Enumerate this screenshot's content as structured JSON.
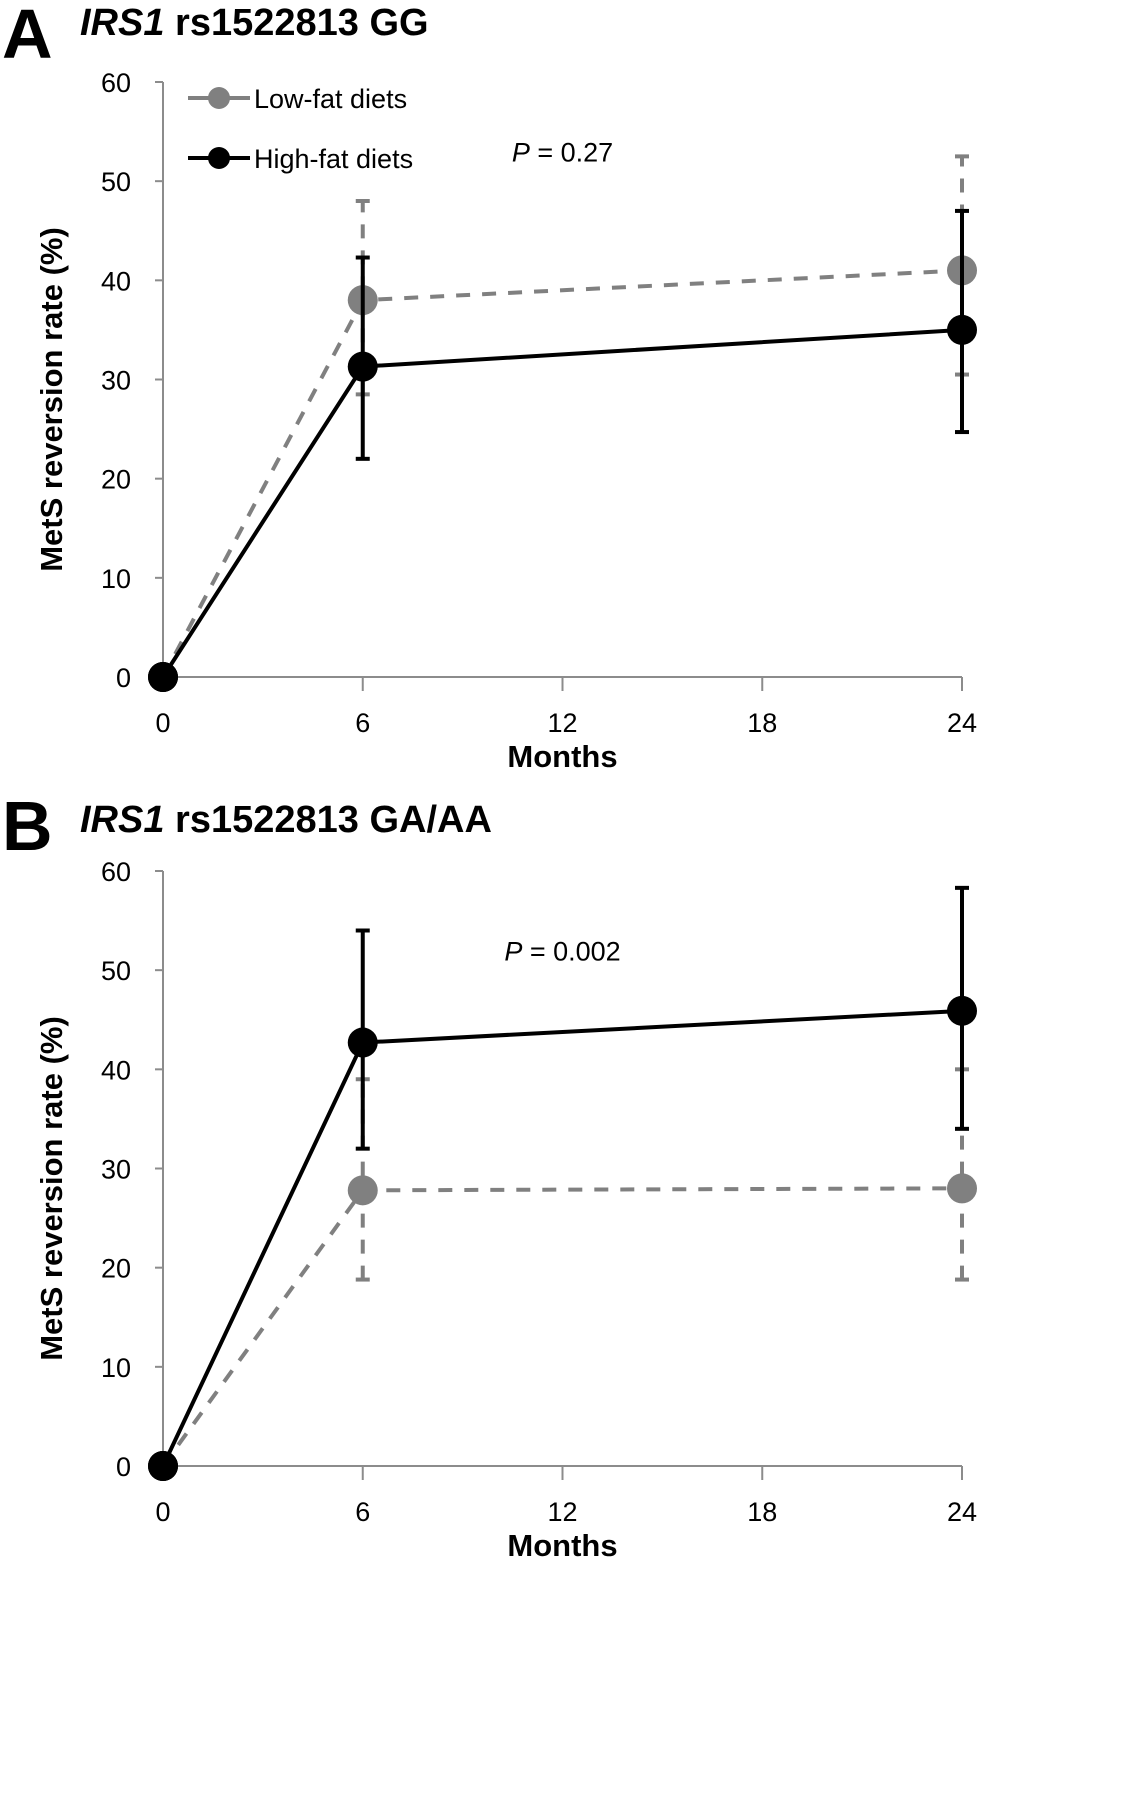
{
  "chart_data": [
    {
      "type": "line",
      "panel_label": "A",
      "title_italic": "IRS1",
      "title_rest": " rs1522813 GG",
      "xlabel": "Months",
      "ylabel": "MetS reversion rate  (%)",
      "x": [
        0,
        6,
        24
      ],
      "xticks": [
        0,
        6,
        12,
        18,
        24
      ],
      "xlim": [
        0,
        24
      ],
      "yticks": [
        0,
        10,
        20,
        30,
        40,
        50,
        60
      ],
      "ylim": [
        0,
        60
      ],
      "grid": false,
      "legend": {
        "placement": "top-left",
        "shown": true
      },
      "annotation": {
        "p_label": "P",
        "p_text": " = 0.27",
        "x": 12,
        "y": 52
      },
      "series": [
        {
          "name": "Low-fat diets",
          "color": "#808080",
          "line_style": "dashed",
          "values": [
            0,
            38,
            41
          ],
          "err_low": [
            0,
            28.5,
            30.5
          ],
          "err_high": [
            0,
            48,
            52.5
          ]
        },
        {
          "name": "High-fat diets",
          "color": "#000000",
          "line_style": "solid",
          "values": [
            0,
            31.3,
            35
          ],
          "err_low": [
            0,
            22,
            24.7
          ],
          "err_high": [
            0,
            42.3,
            47
          ]
        }
      ]
    },
    {
      "type": "line",
      "panel_label": "B",
      "title_italic": "IRS1",
      "title_rest": " rs1522813 GA/AA",
      "xlabel": "Months",
      "ylabel": "MetS reversion rate  (%)",
      "x": [
        0,
        6,
        24
      ],
      "xticks": [
        0,
        6,
        12,
        18,
        24
      ],
      "xlim": [
        0,
        24
      ],
      "yticks": [
        0,
        10,
        20,
        30,
        40,
        50,
        60
      ],
      "ylim": [
        0,
        60
      ],
      "grid": false,
      "legend": {
        "placement": "none",
        "shown": false
      },
      "annotation": {
        "p_label": "P",
        "p_text": " = 0.002",
        "x": 12,
        "y": 51
      },
      "series": [
        {
          "name": "Low-fat diets",
          "color": "#808080",
          "line_style": "dashed",
          "values": [
            0,
            27.8,
            28
          ],
          "err_low": [
            0,
            18.8,
            18.8
          ],
          "err_high": [
            0,
            39,
            40
          ]
        },
        {
          "name": "High-fat diets",
          "color": "#000000",
          "line_style": "solid",
          "values": [
            0,
            42.7,
            45.9
          ],
          "err_low": [
            0,
            32,
            34
          ],
          "err_high": [
            0,
            54,
            58.3
          ]
        }
      ]
    }
  ]
}
